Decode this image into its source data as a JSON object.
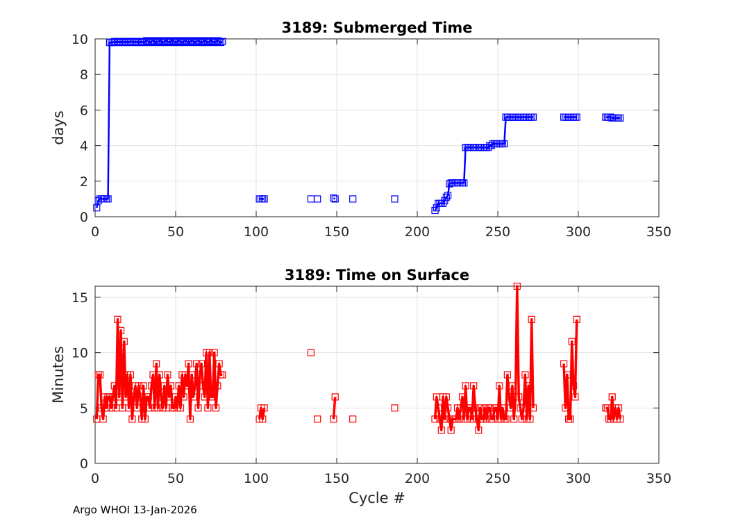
{
  "footer": "Argo WHOI 13-Jan-2026",
  "chart_data": [
    {
      "type": "line",
      "title": "3189: Submerged Time",
      "xlabel": "",
      "ylabel": "days",
      "xlim": [
        0,
        350
      ],
      "ylim": [
        0,
        10
      ],
      "xticks": [
        0,
        50,
        100,
        150,
        200,
        250,
        300,
        350
      ],
      "yticks": [
        0,
        2,
        4,
        6,
        8,
        10
      ],
      "grid": true,
      "color": "#0000ff",
      "marker": "square",
      "series": [
        {
          "name": "submerged time",
          "x": [
            1,
            2,
            3,
            4,
            5,
            6,
            7,
            8,
            9,
            10,
            11,
            12,
            13,
            14,
            15,
            16,
            17,
            18,
            19,
            20,
            21,
            22,
            23,
            24,
            25,
            26,
            27,
            28,
            29,
            30,
            31,
            32,
            33,
            34,
            35,
            36,
            37,
            38,
            39,
            40,
            41,
            42,
            43,
            44,
            45,
            46,
            47,
            48,
            49,
            50,
            51,
            52,
            53,
            54,
            55,
            56,
            57,
            58,
            59,
            60,
            61,
            62,
            63,
            64,
            65,
            66,
            67,
            68,
            69,
            70,
            71,
            72,
            73,
            74,
            75,
            76,
            77,
            78,
            79
          ],
          "y": [
            0.5,
            0.9,
            1.0,
            1.0,
            1.0,
            1.0,
            1.0,
            1.0,
            9.8,
            9.8,
            9.8,
            9.85,
            9.8,
            9.85,
            9.8,
            9.85,
            9.8,
            9.85,
            9.8,
            9.85,
            9.8,
            9.85,
            9.85,
            9.8,
            9.85,
            9.8,
            9.85,
            9.8,
            9.85,
            9.8,
            9.85,
            9.9,
            9.85,
            9.8,
            9.85,
            9.9,
            9.85,
            9.8,
            9.85,
            9.9,
            9.85,
            9.8,
            9.85,
            9.9,
            9.85,
            9.8,
            9.85,
            9.9,
            9.85,
            9.8,
            9.85,
            9.9,
            9.85,
            9.8,
            9.85,
            9.9,
            9.85,
            9.8,
            9.85,
            9.9,
            9.85,
            9.8,
            9.85,
            9.9,
            9.85,
            9.8,
            9.85,
            9.9,
            9.85,
            9.8,
            9.85,
            9.9,
            9.85,
            9.8,
            9.85,
            9.9,
            9.85,
            9.8,
            9.85
          ]
        },
        {
          "name": "submerged time",
          "x": [
            102,
            103,
            104,
            105
          ],
          "y": [
            1.0,
            1.0,
            1.0,
            1.0
          ]
        },
        {
          "name": "submerged time",
          "x": [
            134
          ],
          "y": [
            1.0
          ]
        },
        {
          "name": "submerged time",
          "x": [
            138
          ],
          "y": [
            1.0
          ]
        },
        {
          "name": "submerged time",
          "x": [
            148,
            149
          ],
          "y": [
            1.05,
            1.0
          ]
        },
        {
          "name": "submerged time",
          "x": [
            160
          ],
          "y": [
            1.0
          ]
        },
        {
          "name": "submerged time",
          "x": [
            186
          ],
          "y": [
            1.0
          ]
        },
        {
          "name": "submerged time",
          "x": [
            211,
            212,
            213,
            214,
            215,
            216,
            217,
            218,
            219,
            220,
            221,
            222,
            223,
            224,
            225,
            226,
            227,
            228,
            229,
            230,
            231,
            232,
            233,
            234,
            235,
            236,
            237,
            238,
            239,
            240,
            241,
            242,
            243,
            244,
            245,
            246,
            247,
            248,
            249,
            250,
            251,
            252,
            253,
            254,
            255,
            256,
            257,
            258,
            259,
            260,
            261,
            262,
            263,
            264,
            265,
            266,
            267,
            268,
            269,
            270,
            271,
            272
          ],
          "y": [
            0.35,
            0.5,
            0.75,
            0.75,
            0.75,
            0.75,
            0.9,
            1.1,
            1.2,
            1.85,
            1.9,
            1.9,
            1.9,
            1.9,
            1.9,
            1.9,
            1.9,
            1.9,
            1.9,
            3.9,
            3.9,
            3.9,
            3.9,
            3.9,
            3.9,
            3.9,
            3.9,
            3.9,
            3.9,
            3.9,
            3.9,
            3.9,
            3.9,
            3.9,
            4.0,
            4.0,
            4.1,
            4.1,
            4.1,
            4.1,
            4.1,
            4.1,
            4.1,
            4.1,
            5.6,
            5.6,
            5.6,
            5.6,
            5.6,
            5.6,
            5.6,
            5.6,
            5.6,
            5.6,
            5.6,
            5.6,
            5.6,
            5.6,
            5.6,
            5.6,
            5.6,
            5.6
          ]
        },
        {
          "name": "submerged time",
          "x": [
            291,
            292,
            293,
            294,
            295,
            296,
            297,
            298,
            299
          ],
          "y": [
            5.6,
            5.6,
            5.6,
            5.6,
            5.6,
            5.6,
            5.6,
            5.6,
            5.6
          ]
        },
        {
          "name": "submerged time",
          "x": [
            317,
            318,
            319,
            320,
            321,
            322,
            323,
            324,
            325,
            326
          ],
          "y": [
            5.6,
            5.6,
            5.6,
            5.6,
            5.55,
            5.55,
            5.55,
            5.55,
            5.55,
            5.55
          ]
        }
      ]
    },
    {
      "type": "line",
      "title": "3189: Time on Surface",
      "xlabel": "Cycle #",
      "ylabel": "Minutes",
      "xlim": [
        0,
        350
      ],
      "ylim": [
        0,
        16
      ],
      "xticks": [
        0,
        50,
        100,
        150,
        200,
        250,
        300,
        350
      ],
      "yticks": [
        0,
        5,
        10,
        15
      ],
      "grid": true,
      "color": "#ff0000",
      "marker": "square",
      "series": [
        {
          "name": "surface time",
          "x": [
            1,
            2,
            3,
            4,
            5,
            6,
            7,
            8,
            9,
            10,
            11,
            12,
            13,
            14,
            15,
            16,
            17,
            18,
            19,
            20,
            21,
            22,
            23,
            24,
            25,
            26,
            27,
            28,
            29,
            30,
            31,
            32,
            33,
            34,
            35,
            36,
            37,
            38,
            39,
            40,
            41,
            42,
            43,
            44,
            45,
            46,
            47,
            48,
            49,
            50,
            51,
            52,
            53,
            54,
            55,
            56,
            57,
            58,
            59,
            60,
            61,
            62,
            63,
            64,
            65,
            66,
            67,
            68,
            69,
            70,
            71,
            72,
            73,
            74,
            75,
            76,
            77,
            78,
            79
          ],
          "y": [
            4,
            8,
            8,
            5,
            4,
            6,
            5,
            6,
            6,
            5,
            6,
            7,
            5,
            13,
            6,
            12,
            5,
            11,
            6,
            8,
            5,
            8,
            4,
            6,
            7,
            5,
            7,
            6,
            4,
            7,
            4,
            6,
            6,
            5,
            7,
            8,
            5,
            9,
            5,
            8,
            6,
            5,
            7,
            5,
            8,
            6,
            7,
            5,
            5,
            6,
            5,
            7,
            5,
            8,
            6,
            8,
            7,
            9,
            4,
            8,
            6,
            7,
            9,
            5,
            8,
            9,
            7,
            6,
            10,
            5,
            10,
            6,
            6,
            10,
            5,
            7,
            9,
            8,
            8
          ]
        },
        {
          "name": "surface time",
          "x": [
            102,
            103,
            104,
            105
          ],
          "y": [
            4,
            5,
            4,
            5
          ]
        },
        {
          "name": "surface time",
          "x": [
            134
          ],
          "y": [
            10
          ]
        },
        {
          "name": "surface time",
          "x": [
            138
          ],
          "y": [
            4
          ]
        },
        {
          "name": "surface time",
          "x": [
            148,
            149
          ],
          "y": [
            4,
            6
          ]
        },
        {
          "name": "surface time",
          "x": [
            160
          ],
          "y": [
            4
          ]
        },
        {
          "name": "surface time",
          "x": [
            186
          ],
          "y": [
            5
          ]
        },
        {
          "name": "surface time",
          "x": [
            211,
            212,
            213,
            214,
            215,
            216,
            217,
            218,
            219,
            220,
            221,
            222,
            223,
            224,
            225,
            226,
            227,
            228,
            229,
            230,
            231,
            232,
            233,
            234,
            235,
            236,
            237,
            238,
            239,
            240,
            241,
            242,
            243,
            244,
            245,
            246,
            247,
            248,
            249,
            250,
            251,
            252,
            253,
            254,
            255,
            256,
            257,
            258,
            259,
            260,
            261,
            262,
            263,
            264,
            265,
            266,
            267,
            268,
            269,
            270,
            271,
            272
          ],
          "y": [
            4,
            6,
            5,
            4,
            3,
            6,
            4,
            6,
            5,
            4,
            3,
            4,
            4,
            4,
            5,
            4,
            5,
            6,
            4,
            7,
            4,
            5,
            5,
            4,
            7,
            5,
            4,
            3,
            5,
            4,
            4,
            5,
            4,
            5,
            5,
            4,
            4,
            5,
            5,
            4,
            7,
            4,
            5,
            4,
            4,
            8,
            6,
            5,
            7,
            4,
            6,
            16,
            6,
            5,
            4,
            5,
            8,
            4,
            7,
            4,
            13,
            5
          ]
        },
        {
          "name": "surface time",
          "x": [
            291,
            292,
            293,
            294,
            295,
            296,
            297,
            298,
            299
          ],
          "y": [
            9,
            5,
            8,
            4,
            4,
            11,
            7,
            6,
            13
          ]
        },
        {
          "name": "surface time",
          "x": [
            317,
            318,
            319,
            320,
            321,
            322,
            323,
            324,
            325,
            326
          ],
          "y": [
            5,
            5,
            4,
            4,
            6,
            4,
            5,
            4,
            5,
            4
          ]
        }
      ]
    }
  ]
}
